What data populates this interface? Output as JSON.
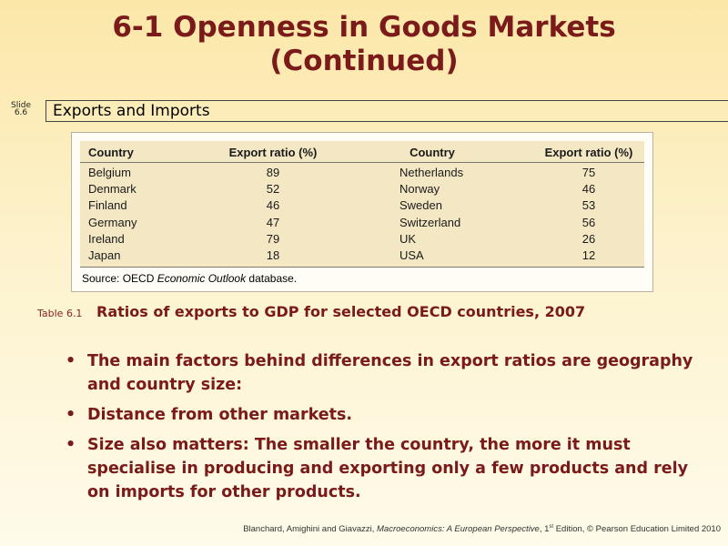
{
  "slide": {
    "title_line1": "6-1  Openness in Goods Markets",
    "title_line2": "(Continued)",
    "slide_label": "Slide",
    "slide_number": "6.6",
    "section": "Exports and Imports"
  },
  "table": {
    "headers": [
      "Country",
      "Export ratio (%)",
      "Country",
      "Export ratio (%)"
    ],
    "rows": [
      [
        "Belgium",
        "89",
        "Netherlands",
        "75"
      ],
      [
        "Denmark",
        "52",
        "Norway",
        "46"
      ],
      [
        "Finland",
        "46",
        "Sweden",
        "53"
      ],
      [
        "Germany",
        "47",
        "Switzerland",
        "56"
      ],
      [
        "Ireland",
        "79",
        "UK",
        "26"
      ],
      [
        "Japan",
        "18",
        "USA",
        "12"
      ]
    ],
    "source_prefix": "Source: OECD ",
    "source_italic": "Economic Outlook",
    "source_suffix": " database.",
    "caption_tag": "Table 6.1",
    "caption": "Ratios of exports to GDP for selected OECD countries, 2007"
  },
  "bullets": [
    "The main factors behind differences in export ratios are geography and country size:",
    "Distance from other markets.",
    "Size also matters: The smaller the country, the more it must specialise in producing and exporting only a few products and rely on imports for other products."
  ],
  "footer": {
    "authors": "Blanchard, Amighini and Giavazzi, ",
    "book": "Macroeconomics: A European Perspective",
    "edition": ", 1",
    "edition_sup": "st",
    "rest": " Edition, © Pearson Education Limited 2010"
  }
}
